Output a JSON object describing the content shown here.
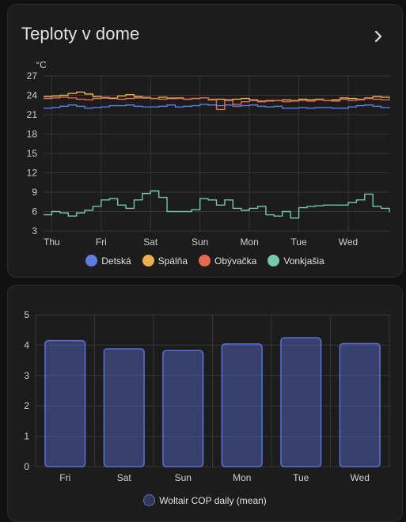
{
  "card1": {
    "title": "Teploty v dome",
    "chevron_icon": "chevron-right-icon"
  },
  "card2": {},
  "chart_data": [
    {
      "type": "line",
      "ylabel": "°C",
      "ylim": [
        3,
        27
      ],
      "yticks": [
        3,
        6,
        9,
        12,
        15,
        18,
        21,
        24,
        27
      ],
      "xticks": [
        "Thu",
        "Fri",
        "Sat",
        "Sun",
        "Mon",
        "Tue",
        "Wed"
      ],
      "x_span": [
        "Wed 20:00",
        "Wed 20:00"
      ],
      "grid": true,
      "legend_position": "bottom",
      "series": [
        {
          "name": "Detská",
          "color": "#5e7de0",
          "x": [
            0,
            4,
            8,
            12,
            16,
            20,
            24,
            28,
            32,
            36,
            40,
            44,
            48,
            52,
            56,
            60,
            64,
            68,
            72,
            76,
            80,
            84,
            88,
            92,
            96,
            100,
            104,
            108,
            112,
            116,
            120,
            124,
            128,
            132,
            136,
            140,
            144,
            148,
            152,
            156,
            160,
            164,
            168
          ],
          "values": [
            22.0,
            22.1,
            22.3,
            22.5,
            22.3,
            22.0,
            22.1,
            22.2,
            22.4,
            22.4,
            22.5,
            22.3,
            22.2,
            22.2,
            22.3,
            22.5,
            22.2,
            22.3,
            22.4,
            22.6,
            22.5,
            22.4,
            22.5,
            22.3,
            22.4,
            22.5,
            22.3,
            22.2,
            22.3,
            22.0,
            22.0,
            22.1,
            22.0,
            22.1,
            22.1,
            22.0,
            22.0,
            22.2,
            22.4,
            22.5,
            22.3,
            22.1,
            22.0
          ]
        },
        {
          "name": "Spálňa",
          "color": "#e8b04f",
          "x": [
            0,
            4,
            8,
            12,
            16,
            20,
            24,
            28,
            32,
            36,
            40,
            44,
            48,
            52,
            56,
            60,
            64,
            68,
            72,
            76,
            80,
            84,
            88,
            92,
            96,
            100,
            104,
            108,
            112,
            116,
            120,
            124,
            128,
            132,
            136,
            140,
            144,
            148,
            152,
            156,
            160,
            164,
            168
          ],
          "values": [
            23.8,
            23.9,
            24.0,
            24.3,
            24.5,
            24.2,
            23.8,
            23.6,
            23.5,
            23.9,
            24.1,
            23.8,
            23.6,
            23.5,
            23.7,
            23.5,
            23.6,
            23.4,
            23.5,
            23.6,
            23.3,
            23.4,
            23.3,
            23.4,
            23.5,
            23.3,
            23.1,
            23.2,
            23.2,
            23.3,
            23.2,
            23.4,
            23.3,
            23.4,
            23.2,
            23.3,
            23.6,
            23.5,
            23.4,
            23.6,
            23.8,
            23.7,
            23.5
          ]
        },
        {
          "name": "Obývačka",
          "color": "#e46a55",
          "x": [
            0,
            4,
            8,
            12,
            16,
            20,
            24,
            28,
            32,
            36,
            40,
            44,
            48,
            52,
            56,
            60,
            64,
            68,
            72,
            76,
            80,
            84,
            88,
            92,
            96,
            100,
            104,
            108,
            112,
            116,
            120,
            124,
            128,
            132,
            136,
            140,
            144,
            148,
            152,
            156,
            160,
            164,
            168
          ],
          "values": [
            23.5,
            23.6,
            23.7,
            23.6,
            23.4,
            23.3,
            23.5,
            23.7,
            23.6,
            23.4,
            23.5,
            23.6,
            23.7,
            23.5,
            23.4,
            23.6,
            23.5,
            23.4,
            23.5,
            23.6,
            23.4,
            21.8,
            23.2,
            22.6,
            23.0,
            23.2,
            23.0,
            23.1,
            23.2,
            23.0,
            23.1,
            23.2,
            23.1,
            23.3,
            23.2,
            23.1,
            23.4,
            23.2,
            23.3,
            23.5,
            23.4,
            23.3,
            23.2
          ]
        },
        {
          "name": "Vonkjašia",
          "color": "#74c9a8",
          "x": [
            0,
            4,
            8,
            12,
            16,
            20,
            24,
            28,
            32,
            36,
            40,
            44,
            48,
            52,
            56,
            60,
            64,
            68,
            72,
            76,
            80,
            84,
            88,
            92,
            96,
            100,
            104,
            108,
            112,
            116,
            120,
            124,
            128,
            132,
            136,
            140,
            144,
            148,
            152,
            156,
            160,
            164,
            168
          ],
          "values": [
            5.5,
            6.0,
            5.8,
            5.3,
            5.8,
            6.2,
            6.8,
            7.8,
            8.0,
            7.0,
            6.5,
            7.8,
            8.8,
            9.2,
            8.2,
            6.0,
            6.0,
            6.0,
            6.3,
            8.0,
            7.8,
            7.0,
            7.8,
            6.5,
            6.2,
            6.5,
            6.8,
            5.5,
            5.3,
            6.0,
            5.0,
            6.6,
            6.8,
            6.9,
            7.0,
            7.0,
            7.0,
            7.4,
            7.8,
            8.7,
            6.8,
            6.5,
            5.9
          ]
        }
      ]
    },
    {
      "type": "bar",
      "categories": [
        "Fri",
        "Sat",
        "Sun",
        "Mon",
        "Tue",
        "Wed"
      ],
      "ylim": [
        0,
        5
      ],
      "yticks": [
        0,
        1,
        2,
        3,
        4,
        5
      ],
      "grid": true,
      "legend_position": "bottom",
      "series": [
        {
          "name": "Woltair COP daily (mean)",
          "color": "#5b6fd6",
          "values": [
            4.15,
            3.88,
            3.82,
            4.04,
            4.24,
            4.05
          ]
        }
      ]
    }
  ]
}
